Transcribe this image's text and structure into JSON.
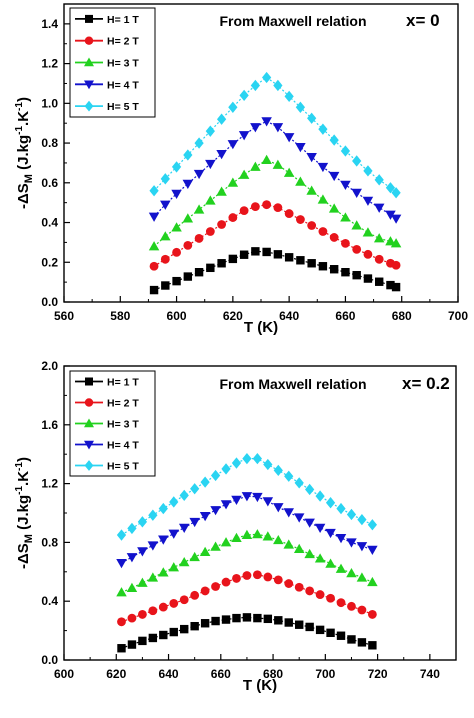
{
  "chart_data": [
    {
      "type": "line",
      "title": "",
      "xlabel": "T (K)",
      "ylabel_parts": {
        "prefix": "-ΔS",
        "sub": "M",
        "units_a": " (J.kg",
        "sup_a": "-1",
        "units_b": ".K",
        "sup_b": "-1",
        "units_c": ")"
      },
      "xlim": [
        560,
        700
      ],
      "ylim": [
        0.0,
        1.5
      ],
      "xticks": [
        "560",
        "580",
        "600",
        "620",
        "640",
        "660",
        "680",
        "700"
      ],
      "yticks": [
        "0.0",
        "0.2",
        "0.4",
        "0.6",
        "0.8",
        "1.0",
        "1.2",
        "1.4"
      ],
      "annotations": [
        "From Maxwell relation",
        "x= 0"
      ],
      "legend_placement": "top-left",
      "x": [
        592,
        596,
        600,
        604,
        608,
        612,
        616,
        620,
        624,
        628,
        632,
        636,
        640,
        644,
        648,
        652,
        656,
        660,
        664,
        668,
        672,
        676,
        678
      ],
      "series": [
        {
          "name": "H= 1 T",
          "color": "#000000",
          "marker": "square",
          "values": [
            0.06,
            0.083,
            0.105,
            0.128,
            0.15,
            0.172,
            0.195,
            0.217,
            0.238,
            0.255,
            0.252,
            0.24,
            0.225,
            0.21,
            0.195,
            0.18,
            0.165,
            0.15,
            0.135,
            0.118,
            0.102,
            0.085,
            0.075
          ]
        },
        {
          "name": "H= 2 T",
          "color": "#e8141b",
          "marker": "circle",
          "values": [
            0.18,
            0.215,
            0.25,
            0.285,
            0.32,
            0.355,
            0.39,
            0.425,
            0.46,
            0.48,
            0.49,
            0.475,
            0.445,
            0.415,
            0.385,
            0.355,
            0.325,
            0.295,
            0.265,
            0.24,
            0.215,
            0.195,
            0.185
          ]
        },
        {
          "name": "H= 3 T",
          "color": "#22d11f",
          "marker": "triangle-up",
          "values": [
            0.28,
            0.33,
            0.375,
            0.42,
            0.465,
            0.51,
            0.555,
            0.6,
            0.64,
            0.68,
            0.715,
            0.69,
            0.65,
            0.605,
            0.56,
            0.515,
            0.47,
            0.425,
            0.385,
            0.35,
            0.32,
            0.305,
            0.295
          ]
        },
        {
          "name": "H= 4 T",
          "color": "#1212cc",
          "marker": "triangle-down",
          "values": [
            0.43,
            0.49,
            0.545,
            0.595,
            0.645,
            0.695,
            0.745,
            0.795,
            0.84,
            0.88,
            0.91,
            0.88,
            0.83,
            0.78,
            0.73,
            0.68,
            0.635,
            0.59,
            0.55,
            0.51,
            0.475,
            0.44,
            0.42
          ]
        },
        {
          "name": "H= 5 T",
          "color": "#2ad4f2",
          "marker": "diamond",
          "values": [
            0.56,
            0.62,
            0.68,
            0.74,
            0.8,
            0.86,
            0.92,
            0.98,
            1.04,
            1.09,
            1.13,
            1.09,
            1.035,
            0.98,
            0.925,
            0.87,
            0.815,
            0.76,
            0.71,
            0.66,
            0.615,
            0.575,
            0.55
          ]
        }
      ]
    },
    {
      "type": "line",
      "title": "",
      "xlabel": "T (K)",
      "ylabel_parts": {
        "prefix": "-ΔS",
        "sub": "M",
        "units_a": " (J.kg",
        "sup_a": "-1",
        "units_b": ".K",
        "sup_b": "-1",
        "units_c": ")"
      },
      "xlim": [
        600,
        750
      ],
      "ylim": [
        0.0,
        2.0
      ],
      "xticks": [
        "600",
        "620",
        "640",
        "660",
        "680",
        "700",
        "720",
        "740"
      ],
      "yticks": [
        "0.0",
        "0.4",
        "0.8",
        "1.2",
        "1.6",
        "2.0"
      ],
      "annotations": [
        "From Maxwell relation",
        "x= 0.2"
      ],
      "legend_placement": "top-left",
      "x": [
        622,
        626,
        630,
        634,
        638,
        642,
        646,
        650,
        654,
        658,
        662,
        666,
        670,
        674,
        678,
        682,
        686,
        690,
        694,
        698,
        702,
        706,
        710,
        714,
        718
      ],
      "series": [
        {
          "name": "H= 1 T",
          "color": "#000000",
          "marker": "square",
          "values": [
            0.08,
            0.105,
            0.13,
            0.15,
            0.17,
            0.19,
            0.21,
            0.23,
            0.25,
            0.265,
            0.275,
            0.285,
            0.29,
            0.285,
            0.28,
            0.27,
            0.255,
            0.24,
            0.225,
            0.205,
            0.185,
            0.165,
            0.14,
            0.12,
            0.1
          ]
        },
        {
          "name": "H= 2 T",
          "color": "#e8141b",
          "marker": "circle",
          "values": [
            0.26,
            0.285,
            0.31,
            0.335,
            0.36,
            0.385,
            0.41,
            0.44,
            0.47,
            0.5,
            0.53,
            0.555,
            0.575,
            0.58,
            0.565,
            0.545,
            0.52,
            0.495,
            0.47,
            0.445,
            0.42,
            0.39,
            0.365,
            0.34,
            0.31
          ]
        },
        {
          "name": "H= 3 T",
          "color": "#22d11f",
          "marker": "triangle-up",
          "values": [
            0.46,
            0.49,
            0.525,
            0.56,
            0.595,
            0.63,
            0.665,
            0.7,
            0.735,
            0.77,
            0.8,
            0.83,
            0.85,
            0.855,
            0.84,
            0.815,
            0.785,
            0.755,
            0.72,
            0.69,
            0.655,
            0.62,
            0.59,
            0.56,
            0.53
          ]
        },
        {
          "name": "H= 4 T",
          "color": "#1212cc",
          "marker": "triangle-down",
          "values": [
            0.66,
            0.7,
            0.74,
            0.78,
            0.82,
            0.86,
            0.9,
            0.94,
            0.98,
            1.02,
            1.06,
            1.09,
            1.115,
            1.11,
            1.08,
            1.04,
            1.005,
            0.97,
            0.935,
            0.9,
            0.865,
            0.83,
            0.8,
            0.775,
            0.75
          ]
        },
        {
          "name": "H= 5 T",
          "color": "#2ad4f2",
          "marker": "diamond",
          "values": [
            0.85,
            0.895,
            0.94,
            0.985,
            1.03,
            1.075,
            1.12,
            1.165,
            1.21,
            1.255,
            1.3,
            1.34,
            1.37,
            1.37,
            1.33,
            1.29,
            1.25,
            1.205,
            1.16,
            1.115,
            1.07,
            1.03,
            0.99,
            0.955,
            0.92
          ]
        }
      ]
    }
  ]
}
